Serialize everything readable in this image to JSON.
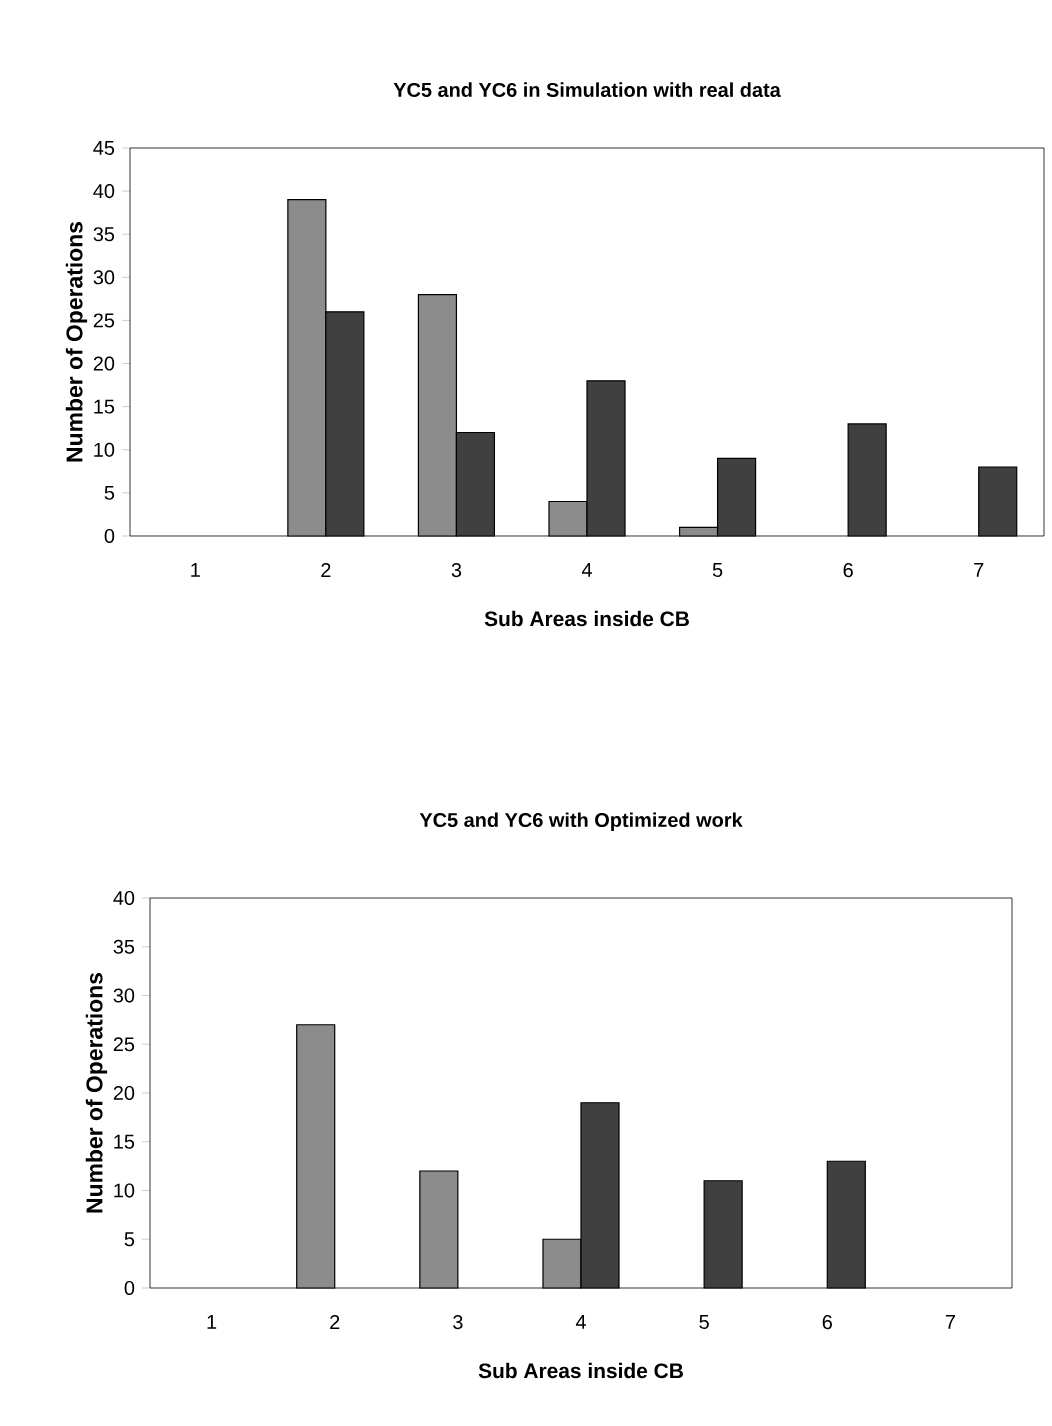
{
  "chart_data": [
    {
      "type": "bar",
      "title": "YC5 and YC6 in Simulation with real data",
      "xlabel": "Sub Areas inside CB",
      "ylabel": "Number of Operations",
      "categories": [
        "1",
        "2",
        "3",
        "4",
        "5",
        "6",
        "7"
      ],
      "series": [
        {
          "color": "#8c8c8c",
          "values": [
            null,
            39,
            28,
            4,
            1,
            null,
            null
          ]
        },
        {
          "color": "#404040",
          "values": [
            null,
            26,
            12,
            18,
            9,
            13,
            8
          ]
        }
      ],
      "ylim": [
        0,
        45
      ],
      "yticks": [
        0,
        5,
        10,
        15,
        20,
        25,
        30,
        35,
        40,
        45
      ]
    },
    {
      "type": "bar",
      "title": "YC5 and YC6  with Optimized work",
      "xlabel": "Sub Areas inside CB",
      "ylabel": "Number of Operations",
      "categories": [
        "1",
        "2",
        "3",
        "4",
        "5",
        "6",
        "7"
      ],
      "series": [
        {
          "color": "#8c8c8c",
          "values": [
            null,
            27,
            12,
            5,
            null,
            null,
            null
          ]
        },
        {
          "color": "#404040",
          "values": [
            null,
            null,
            null,
            19,
            11,
            13,
            null
          ]
        }
      ],
      "ylim": [
        0,
        40
      ],
      "yticks": [
        0,
        5,
        10,
        15,
        20,
        25,
        30,
        35,
        40
      ]
    }
  ]
}
